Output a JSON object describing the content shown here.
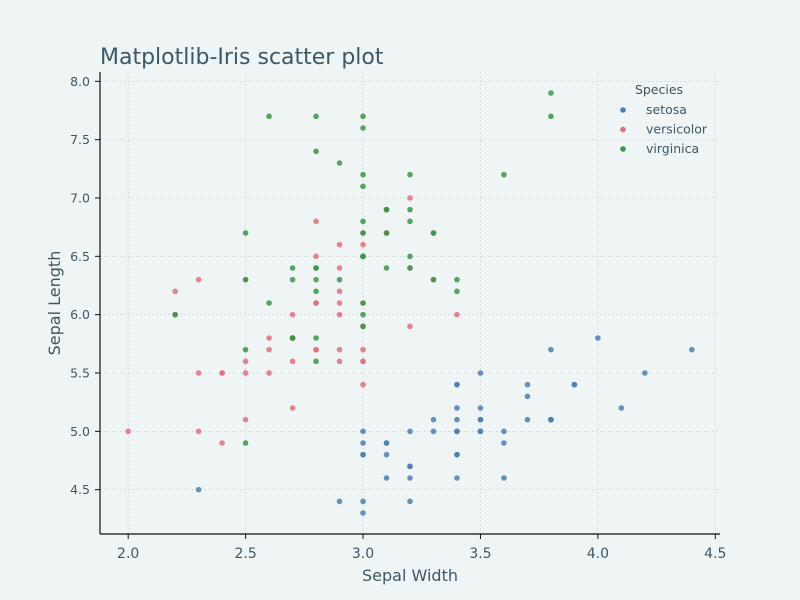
{
  "chart_data": {
    "type": "scatter",
    "title": "Matplotlib-Iris scatter plot",
    "xlabel": "Sepal Width",
    "ylabel": "Sepal Length",
    "xlim": [
      1.88,
      4.52
    ],
    "ylim": [
      4.12,
      8.08
    ],
    "xticks": [
      2.0,
      2.5,
      3.0,
      3.5,
      4.0,
      4.5
    ],
    "xtick_labels": [
      "2.0",
      "2.5",
      "3.0",
      "3.5",
      "4.0",
      "4.5"
    ],
    "yticks": [
      4.5,
      5.0,
      5.5,
      6.0,
      6.5,
      7.0,
      7.5,
      8.0
    ],
    "ytick_labels": [
      "4.5",
      "5.0",
      "5.5",
      "6.0",
      "6.5",
      "7.0",
      "7.5",
      "8.0"
    ],
    "grid": true,
    "legend": {
      "title": "Species",
      "position": "top-right"
    },
    "series": [
      {
        "name": "setosa",
        "color": "#4f7eae",
        "points": [
          [
            3.5,
            5.1
          ],
          [
            3.0,
            4.9
          ],
          [
            3.2,
            4.7
          ],
          [
            3.1,
            4.6
          ],
          [
            3.6,
            5.0
          ],
          [
            3.9,
            5.4
          ],
          [
            3.4,
            4.6
          ],
          [
            3.4,
            5.0
          ],
          [
            2.9,
            4.4
          ],
          [
            3.1,
            4.9
          ],
          [
            3.7,
            5.4
          ],
          [
            3.4,
            4.8
          ],
          [
            3.0,
            4.8
          ],
          [
            3.0,
            4.3
          ],
          [
            4.0,
            5.8
          ],
          [
            4.4,
            5.7
          ],
          [
            3.9,
            5.4
          ],
          [
            3.5,
            5.1
          ],
          [
            3.8,
            5.7
          ],
          [
            3.8,
            5.1
          ],
          [
            3.4,
            5.4
          ],
          [
            3.7,
            5.1
          ],
          [
            3.6,
            4.6
          ],
          [
            3.3,
            5.1
          ],
          [
            3.4,
            4.8
          ],
          [
            3.0,
            5.0
          ],
          [
            3.4,
            5.0
          ],
          [
            3.5,
            5.2
          ],
          [
            3.4,
            5.2
          ],
          [
            3.2,
            4.7
          ],
          [
            3.1,
            4.8
          ],
          [
            3.4,
            5.4
          ],
          [
            4.1,
            5.2
          ],
          [
            4.2,
            5.5
          ],
          [
            3.1,
            4.9
          ],
          [
            3.2,
            5.0
          ],
          [
            3.5,
            5.5
          ],
          [
            3.6,
            4.9
          ],
          [
            3.0,
            4.4
          ],
          [
            3.4,
            5.1
          ],
          [
            3.5,
            5.0
          ],
          [
            2.3,
            4.5
          ],
          [
            3.2,
            4.4
          ],
          [
            3.5,
            5.0
          ],
          [
            3.8,
            5.1
          ],
          [
            3.0,
            4.8
          ],
          [
            3.8,
            5.1
          ],
          [
            3.2,
            4.6
          ],
          [
            3.7,
            5.3
          ],
          [
            3.3,
            5.0
          ]
        ]
      },
      {
        "name": "versicolor",
        "color": "#e0707e",
        "points": [
          [
            3.2,
            7.0
          ],
          [
            3.2,
            6.4
          ],
          [
            3.1,
            6.9
          ],
          [
            2.3,
            5.5
          ],
          [
            2.8,
            6.5
          ],
          [
            2.8,
            5.7
          ],
          [
            3.3,
            6.3
          ],
          [
            2.4,
            4.9
          ],
          [
            2.9,
            6.6
          ],
          [
            2.7,
            5.2
          ],
          [
            2.0,
            5.0
          ],
          [
            3.0,
            5.9
          ],
          [
            2.2,
            6.0
          ],
          [
            2.9,
            6.1
          ],
          [
            2.9,
            5.6
          ],
          [
            3.1,
            6.7
          ],
          [
            3.0,
            5.6
          ],
          [
            2.7,
            5.8
          ],
          [
            2.2,
            6.2
          ],
          [
            2.5,
            5.6
          ],
          [
            3.2,
            5.9
          ],
          [
            2.8,
            6.1
          ],
          [
            2.5,
            6.3
          ],
          [
            2.8,
            6.1
          ],
          [
            2.9,
            6.4
          ],
          [
            3.0,
            6.6
          ],
          [
            2.8,
            6.8
          ],
          [
            3.0,
            6.7
          ],
          [
            2.9,
            6.0
          ],
          [
            2.6,
            5.7
          ],
          [
            2.4,
            5.5
          ],
          [
            2.4,
            5.5
          ],
          [
            2.7,
            5.8
          ],
          [
            2.7,
            6.0
          ],
          [
            3.0,
            5.4
          ],
          [
            3.4,
            6.0
          ],
          [
            3.1,
            6.7
          ],
          [
            2.3,
            6.3
          ],
          [
            3.0,
            5.6
          ],
          [
            2.5,
            5.5
          ],
          [
            2.6,
            5.5
          ],
          [
            3.0,
            6.1
          ],
          [
            2.6,
            5.8
          ],
          [
            2.3,
            5.0
          ],
          [
            2.7,
            5.6
          ],
          [
            3.0,
            5.7
          ],
          [
            2.9,
            5.7
          ],
          [
            2.9,
            6.2
          ],
          [
            2.5,
            5.1
          ],
          [
            2.8,
            5.7
          ]
        ]
      },
      {
        "name": "virginica",
        "color": "#3c9448",
        "points": [
          [
            3.3,
            6.3
          ],
          [
            2.7,
            5.8
          ],
          [
            3.0,
            7.1
          ],
          [
            2.9,
            6.3
          ],
          [
            3.0,
            6.5
          ],
          [
            3.0,
            7.6
          ],
          [
            2.5,
            4.9
          ],
          [
            2.9,
            7.3
          ],
          [
            2.5,
            6.7
          ],
          [
            3.6,
            7.2
          ],
          [
            3.2,
            6.5
          ],
          [
            2.7,
            6.4
          ],
          [
            3.0,
            6.8
          ],
          [
            2.5,
            5.7
          ],
          [
            2.8,
            5.8
          ],
          [
            3.2,
            6.4
          ],
          [
            3.0,
            6.5
          ],
          [
            3.8,
            7.7
          ],
          [
            2.6,
            7.7
          ],
          [
            2.2,
            6.0
          ],
          [
            3.2,
            6.9
          ],
          [
            2.8,
            5.6
          ],
          [
            2.8,
            7.7
          ],
          [
            2.7,
            6.3
          ],
          [
            3.3,
            6.7
          ],
          [
            3.2,
            7.2
          ],
          [
            2.8,
            6.2
          ],
          [
            3.0,
            6.1
          ],
          [
            2.8,
            6.4
          ],
          [
            3.0,
            7.2
          ],
          [
            2.8,
            7.4
          ],
          [
            3.8,
            7.9
          ],
          [
            2.8,
            6.4
          ],
          [
            2.8,
            6.3
          ],
          [
            2.6,
            6.1
          ],
          [
            3.0,
            7.7
          ],
          [
            3.4,
            6.3
          ],
          [
            3.1,
            6.4
          ],
          [
            3.0,
            6.0
          ],
          [
            3.1,
            6.9
          ],
          [
            3.1,
            6.7
          ],
          [
            3.1,
            6.9
          ],
          [
            2.7,
            5.8
          ],
          [
            3.2,
            6.8
          ],
          [
            3.3,
            6.7
          ],
          [
            3.0,
            6.7
          ],
          [
            2.5,
            6.3
          ],
          [
            3.0,
            6.5
          ],
          [
            3.4,
            6.2
          ],
          [
            3.0,
            5.9
          ]
        ]
      }
    ]
  }
}
